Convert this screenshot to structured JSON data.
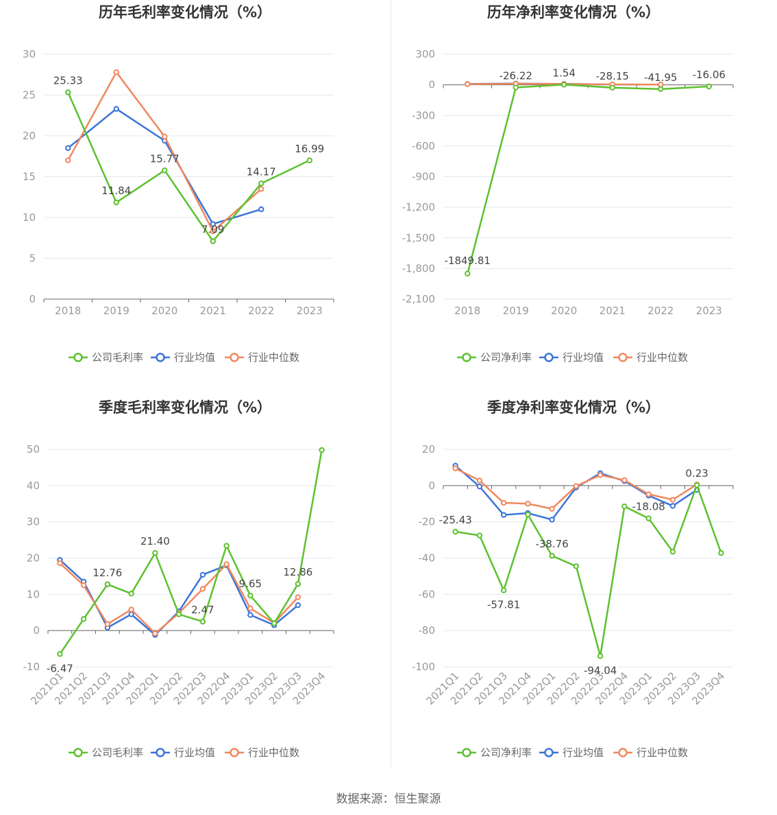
{
  "source": "数据来源：恒生聚源",
  "legend_labels": {
    "company_gross": "公司毛利率",
    "company_net": "公司净利率",
    "industry_avg": "行业均值",
    "industry_median": "行业中位数"
  },
  "colors": {
    "company": "#5cc12e",
    "industry_avg": "#3b74d9",
    "industry_median": "#f0885d"
  },
  "chart_data": [
    {
      "id": "annual_gross",
      "type": "line",
      "title": "历年毛利率变化情况（%）",
      "categories": [
        "2018",
        "2019",
        "2020",
        "2021",
        "2022",
        "2023"
      ],
      "ylim": [
        0,
        30
      ],
      "yticks": [
        0,
        5,
        10,
        15,
        20,
        25,
        30
      ],
      "yticks_label": [
        "0",
        "5",
        "10",
        "15",
        "20",
        "25",
        "30"
      ],
      "xlabel_rotate": false,
      "series": [
        {
          "name": "公司毛利率",
          "color": "#5cc12e",
          "values": [
            25.33,
            11.84,
            15.77,
            7.09,
            14.17,
            16.99
          ],
          "labels": [
            "25.33",
            "11.84",
            "15.77",
            "7.09",
            "14.17",
            "16.99"
          ]
        },
        {
          "name": "行业均值",
          "color": "#3b74d9",
          "values": [
            18.5,
            23.3,
            19.4,
            9.2,
            11.0,
            null
          ]
        },
        {
          "name": "行业中位数",
          "color": "#f0885d",
          "values": [
            17.0,
            27.8,
            19.9,
            8.3,
            13.5,
            null
          ]
        }
      ]
    },
    {
      "id": "annual_net",
      "type": "line",
      "title": "历年净利率变化情况（%）",
      "categories": [
        "2018",
        "2019",
        "2020",
        "2021",
        "2022",
        "2023"
      ],
      "ylim": [
        -2100,
        300
      ],
      "yticks": [
        -2100,
        -1800,
        -1500,
        -1200,
        -900,
        -600,
        -300,
        0,
        300
      ],
      "yticks_label": [
        "-2,100",
        "-1,800",
        "-1,500",
        "-1,200",
        "-900",
        "-600",
        "-300",
        "0",
        "300"
      ],
      "xlabel_rotate": false,
      "series": [
        {
          "name": "公司净利率",
          "color": "#5cc12e",
          "values": [
            -1849.81,
            -26.22,
            1.54,
            -28.15,
            -41.95,
            -16.06
          ],
          "labels": [
            "-1849.81",
            "-26.22",
            "1.54",
            "-28.15",
            "-41.95",
            "-16.06"
          ]
        },
        {
          "name": "行业均值",
          "color": "#3b74d9",
          "values": [
            8,
            12,
            9,
            3,
            2,
            null
          ]
        },
        {
          "name": "行业中位数",
          "color": "#f0885d",
          "values": [
            6,
            10,
            8,
            4,
            3,
            null
          ]
        }
      ]
    },
    {
      "id": "quarter_gross",
      "type": "line",
      "title": "季度毛利率变化情况（%）",
      "categories": [
        "2021Q1",
        "2021Q2",
        "2021Q3",
        "2021Q4",
        "2022Q1",
        "2022Q2",
        "2022Q3",
        "2022Q4",
        "2023Q1",
        "2023Q2",
        "2023Q3",
        "2023Q4"
      ],
      "ylim": [
        -10,
        50
      ],
      "yticks": [
        -10,
        0,
        10,
        20,
        30,
        40,
        50
      ],
      "yticks_label": [
        "-10",
        "0",
        "10",
        "20",
        "30",
        "40",
        "50"
      ],
      "xlabel_rotate": true,
      "series": [
        {
          "name": "公司毛利率",
          "color": "#5cc12e",
          "values": [
            -6.47,
            3.2,
            12.76,
            10.2,
            21.4,
            4.5,
            2.47,
            23.4,
            9.65,
            2.0,
            12.86,
            49.8
          ],
          "labels": [
            "-6.47",
            null,
            "12.76",
            null,
            "21.40",
            null,
            "2.47",
            null,
            "9.65",
            null,
            "12.86",
            null
          ]
        },
        {
          "name": "行业均值",
          "color": "#3b74d9",
          "values": [
            19.5,
            13.5,
            0.8,
            4.5,
            -1.2,
            5.3,
            15.4,
            18.0,
            4.3,
            1.5,
            7.0,
            null
          ]
        },
        {
          "name": "行业中位数",
          "color": "#f0885d",
          "values": [
            18.6,
            12.5,
            1.8,
            5.8,
            -0.8,
            4.8,
            11.5,
            18.3,
            6.1,
            2.1,
            9.2,
            null
          ]
        }
      ]
    },
    {
      "id": "quarter_net",
      "type": "line",
      "title": "季度净利率变化情况（%）",
      "categories": [
        "2021Q1",
        "2021Q2",
        "2021Q3",
        "2021Q4",
        "2022Q1",
        "2022Q2",
        "2022Q3",
        "2022Q4",
        "2023Q1",
        "2023Q2",
        "2023Q3",
        "2023Q4"
      ],
      "ylim": [
        -100,
        20
      ],
      "yticks": [
        -100,
        -80,
        -60,
        -40,
        -20,
        0,
        20
      ],
      "yticks_label": [
        "-100",
        "-80",
        "-60",
        "-40",
        "-20",
        "0",
        "20"
      ],
      "xlabel_rotate": true,
      "series": [
        {
          "name": "公司净利率",
          "color": "#5cc12e",
          "values": [
            -25.43,
            -27.5,
            -57.81,
            -16.0,
            -38.76,
            -44.5,
            -94.04,
            -11.5,
            -18.08,
            -36.5,
            0.23,
            -37.2
          ],
          "labels": [
            "-25.43",
            null,
            "-57.81",
            null,
            "-38.76",
            null,
            "-94.04",
            null,
            "-18.08",
            null,
            "0.23",
            null
          ]
        },
        {
          "name": "行业均值",
          "color": "#3b74d9",
          "values": [
            11.0,
            -0.5,
            -16.2,
            -15.2,
            -18.8,
            -1.0,
            6.8,
            2.5,
            -5.5,
            -11.2,
            -2.3,
            null
          ]
        },
        {
          "name": "行业中位数",
          "color": "#f0885d",
          "values": [
            9.5,
            2.8,
            -9.5,
            -10.0,
            -12.8,
            -0.3,
            5.8,
            3.0,
            -4.8,
            -7.8,
            0.6,
            null
          ]
        }
      ]
    }
  ]
}
